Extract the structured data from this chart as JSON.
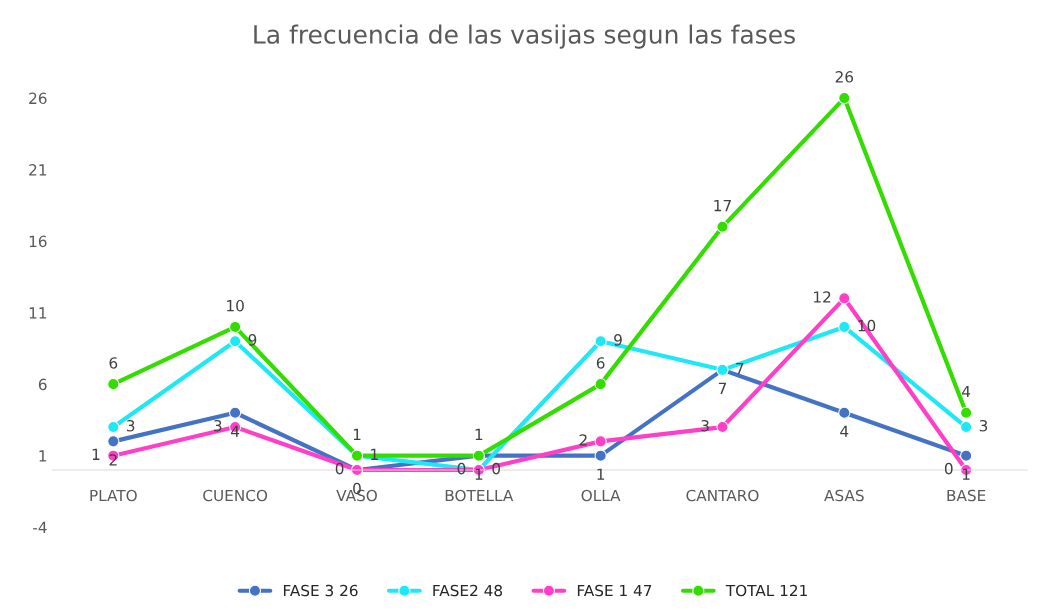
{
  "chart_data": {
    "type": "line",
    "title": "La frecuencia de las vasijas segun las fases",
    "categories": [
      "PLATO",
      "CUENCO",
      "VASO",
      "BOTELLA",
      "OLLA",
      "CANTARO",
      "ASAS",
      "BASE"
    ],
    "series": [
      {
        "name": "FASE 3 26",
        "color": "#4472c4",
        "values": [
          2,
          4,
          0,
          1,
          1,
          7,
          4,
          1
        ]
      },
      {
        "name": "FASE2 48",
        "color": "#1ee8f5",
        "values": [
          3,
          9,
          1,
          0,
          9,
          7,
          10,
          3
        ]
      },
      {
        "name": "FASE 1 47",
        "color": "#ff3fc8",
        "values": [
          1,
          3,
          0,
          0,
          2,
          3,
          12,
          0
        ]
      },
      {
        "name": "TOTAL 121",
        "color": "#33dd00",
        "values": [
          6,
          10,
          1,
          1,
          6,
          17,
          26,
          4
        ]
      }
    ],
    "ylim": [
      -4,
      26
    ],
    "yticks": [
      -4,
      1,
      6,
      11,
      16,
      21,
      26
    ],
    "grid": false,
    "legend": "bottom",
    "marker": "circle",
    "line_style": "solid",
    "data_labels": true
  }
}
